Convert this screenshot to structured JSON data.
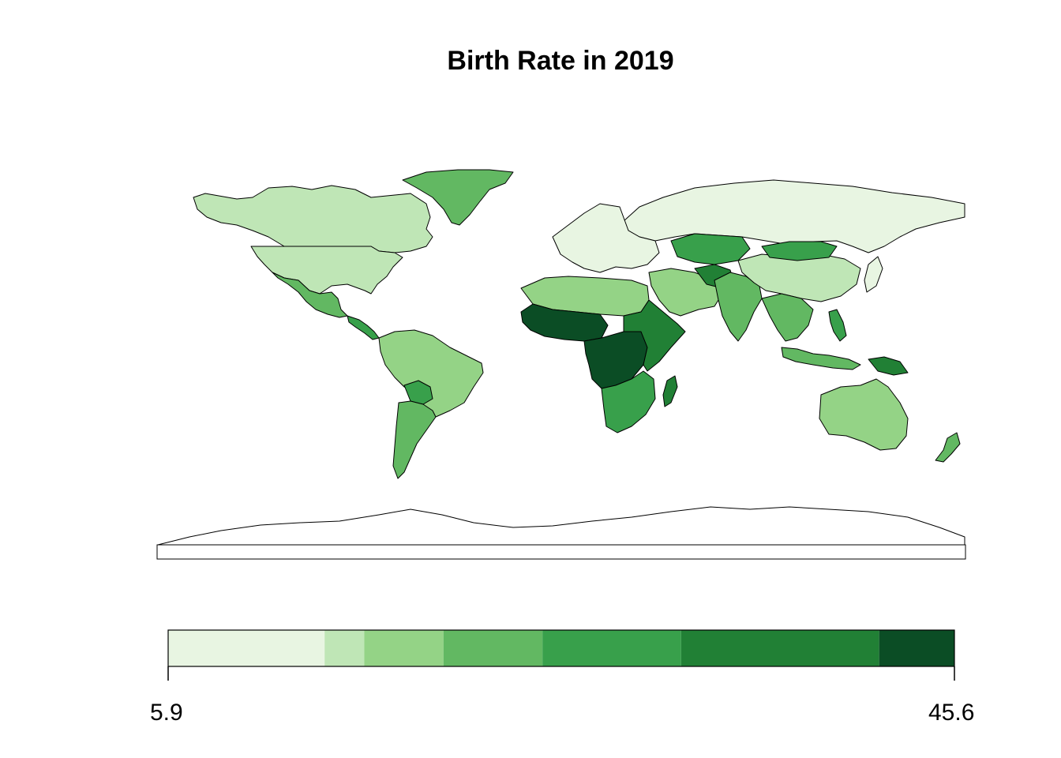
{
  "title": "Birth Rate in 2019",
  "legend": {
    "min_label": "5.9",
    "max_label": "45.6",
    "min": 5.9,
    "max": 45.6,
    "breaks": [
      5.9,
      13.8,
      15.8,
      19.8,
      24.8,
      31.8,
      41.8,
      45.6
    ],
    "colors": [
      "#e8f5e2",
      "#bfe6b6",
      "#94d386",
      "#62b862",
      "#38a04b",
      "#218035",
      "#0b4d25"
    ]
  },
  "regions": [
    {
      "name": "Canada",
      "color": "#bfe6b6"
    },
    {
      "name": "United States",
      "color": "#bfe6b6"
    },
    {
      "name": "Greenland",
      "color": "#62b862"
    },
    {
      "name": "Mexico",
      "color": "#62b862"
    },
    {
      "name": "Central America",
      "color": "#38a04b"
    },
    {
      "name": "South America",
      "color": "#94d386"
    },
    {
      "name": "Bolivia",
      "color": "#38a04b"
    },
    {
      "name": "Argentina",
      "color": "#62b862"
    },
    {
      "name": "Russia",
      "color": "#e8f5e2"
    },
    {
      "name": "Europe",
      "color": "#e8f5e2"
    },
    {
      "name": "North Africa",
      "color": "#94d386"
    },
    {
      "name": "West Africa",
      "color": "#0b4d25"
    },
    {
      "name": "Central Africa",
      "color": "#0b4d25"
    },
    {
      "name": "East Africa",
      "color": "#218035"
    },
    {
      "name": "Southern Africa",
      "color": "#38a04b"
    },
    {
      "name": "Madagascar",
      "color": "#218035"
    },
    {
      "name": "Middle East",
      "color": "#94d386"
    },
    {
      "name": "Kazakhstan",
      "color": "#38a04b"
    },
    {
      "name": "Afghanistan",
      "color": "#218035"
    },
    {
      "name": "India",
      "color": "#62b862"
    },
    {
      "name": "China",
      "color": "#bfe6b6"
    },
    {
      "name": "Mongolia",
      "color": "#38a04b"
    },
    {
      "name": "Southeast Asia",
      "color": "#62b862"
    },
    {
      "name": "Indonesia",
      "color": "#62b862"
    },
    {
      "name": "Philippines",
      "color": "#38a04b"
    },
    {
      "name": "Papua New Guinea",
      "color": "#218035"
    },
    {
      "name": "Australia",
      "color": "#94d386"
    },
    {
      "name": "New Zealand",
      "color": "#62b862"
    },
    {
      "name": "Japan",
      "color": "#e8f5e2"
    },
    {
      "name": "Antarctica",
      "color": "#ffffff"
    }
  ]
}
